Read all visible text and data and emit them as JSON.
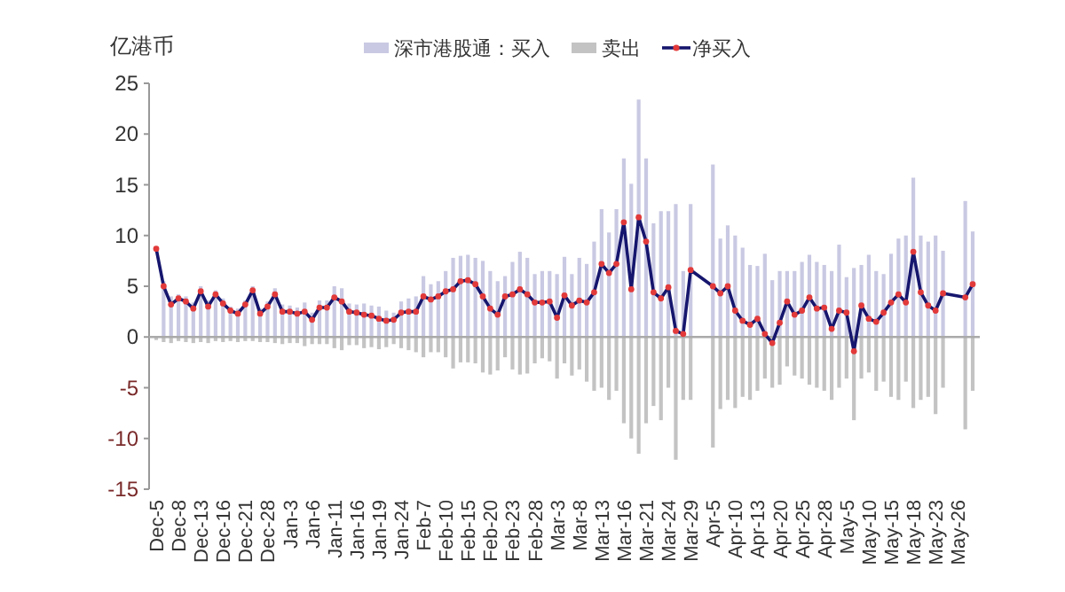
{
  "chart_data": {
    "type": "bar",
    "ylabel": "亿港币",
    "legend": "top",
    "stacked": true,
    "categories": [
      "Dec-5",
      null,
      null,
      "Dec-8",
      null,
      null,
      "Dec-13",
      null,
      null,
      "Dec-16",
      null,
      null,
      "Dec-21",
      null,
      null,
      "Dec-28",
      null,
      null,
      "Jan-3",
      null,
      null,
      "Jan-6",
      null,
      null,
      "Jan-11",
      null,
      null,
      "Jan-16",
      null,
      null,
      "Jan-19",
      null,
      null,
      "Jan-24",
      null,
      null,
      "Feb-7",
      null,
      null,
      "Feb-10",
      null,
      null,
      "Feb-15",
      null,
      null,
      "Feb-20",
      null,
      null,
      "Feb-23",
      null,
      null,
      "Feb-28",
      null,
      null,
      "Mar-3",
      null,
      null,
      "Mar-8",
      null,
      null,
      "Mar-13",
      null,
      null,
      "Mar-16",
      null,
      null,
      "Mar-21",
      null,
      null,
      "Mar-24",
      null,
      null,
      "Mar-29",
      null,
      null,
      "Apr-5",
      null,
      null,
      "Apr-10",
      null,
      null,
      "Apr-13",
      null,
      null,
      "Apr-20",
      null,
      null,
      "Apr-25",
      null,
      null,
      "Apr-28",
      null,
      null,
      "May-5",
      null,
      null,
      "May-10",
      null,
      null,
      "May-15",
      null,
      null,
      "May-18",
      null,
      null,
      "May-23",
      null,
      null,
      "May-26",
      null,
      null
    ],
    "ylim": [
      -15,
      25
    ],
    "yticks": [
      -15,
      -10,
      -5,
      0,
      5,
      10,
      15,
      20,
      25
    ],
    "series": [
      {
        "name": "深市港股通：买入",
        "color": "#c9c9e3",
        "values": [
          null,
          5.5,
          4.0,
          4.2,
          4.0,
          3.4,
          5.0,
          3.6,
          4.6,
          3.8,
          3.0,
          2.8,
          3.6,
          5.0,
          2.8,
          3.5,
          4.8,
          3.2,
          3.1,
          2.9,
          3.4,
          2.4,
          3.6,
          3.6,
          5.0,
          4.8,
          3.3,
          3.2,
          3.3,
          3.1,
          3.0,
          2.6,
          2.4,
          3.5,
          3.8,
          4.0,
          6.0,
          5.2,
          5.5,
          6.5,
          7.8,
          8.0,
          8.1,
          7.8,
          7.5,
          6.5,
          5.5,
          6.0,
          7.4,
          8.4,
          7.8,
          6.2,
          6.5,
          6.5,
          6.2,
          7.9,
          6.2,
          7.8,
          7.2,
          9.4,
          12.6,
          10.3,
          12.6,
          17.6,
          15.1,
          23.4,
          17.6,
          11.2,
          12.4,
          12.4,
          13.1,
          6.5,
          13.1,
          null,
          null,
          17,
          9.7,
          11,
          10,
          8.8,
          7.1,
          7.0,
          8.2,
          5.6,
          6.5,
          6.5,
          6.5,
          7.4,
          8.1,
          7.4,
          7.1,
          6.5,
          9.1,
          5.9,
          6.8,
          7.1,
          8.1,
          6.5,
          6.2,
          8.2,
          9.7,
          10,
          15.7,
          10,
          9.4,
          10,
          8.5,
          null,
          null,
          13.4,
          10.4
        ]
      },
      {
        "name": "卖出",
        "color": "#c3c3c3",
        "values": [
          -0.3,
          -0.5,
          -0.6,
          -0.4,
          -0.5,
          -0.6,
          -0.5,
          -0.6,
          -0.4,
          -0.5,
          -0.4,
          -0.5,
          -0.4,
          -0.4,
          -0.5,
          -0.5,
          -0.6,
          -0.7,
          -0.6,
          -0.6,
          -0.9,
          -0.7,
          -0.7,
          -0.7,
          -1.1,
          -1.3,
          -0.8,
          -0.8,
          -1.1,
          -1.0,
          -1.2,
          -1.0,
          -0.7,
          -1.1,
          -1.3,
          -1.5,
          -2.0,
          -1.5,
          -1.5,
          -2.0,
          -3.1,
          -2.5,
          -2.5,
          -2.6,
          -3.5,
          -3.7,
          -3.3,
          -2.0,
          -3.2,
          -3.7,
          -3.6,
          -2.6,
          -2.1,
          -2.4,
          -4.1,
          -2.6,
          -3.8,
          -3.2,
          -4.4,
          -5.3,
          -5.0,
          -6.2,
          -5.3,
          -8.5,
          -10,
          -11.5,
          -8.5,
          -6.8,
          -8.2,
          -5.0,
          -12.1,
          -6.2,
          -6.2,
          null,
          null,
          -10.9,
          -7.1,
          -6.2,
          -7,
          -5.9,
          -6.2,
          -5.3,
          -4.1,
          -5.0,
          -4.7,
          -2.9,
          -3.8,
          -4.1,
          -4.7,
          -5.0,
          -5.3,
          -6.2,
          -5.0,
          -4.1,
          -8.2,
          -4.1,
          -3.5,
          -5.3,
          -4.4,
          -5.9,
          -6.2,
          -4.4,
          -7,
          -6.2,
          -5.9,
          -7.6,
          -5.0,
          null,
          null,
          -9.1,
          -5.3
        ]
      },
      {
        "name": "净买入",
        "type": "line",
        "color": "#16166e",
        "marker": "circle",
        "line_style": "solid",
        "colors": [
          "#e23a3a",
          "#e23a3a",
          "#e23a3a",
          "#e23a3a",
          "#e23a3a",
          "#e23a3a",
          "#e23a3a",
          "#e23a3a",
          "#e23a3a",
          "#e23a3a",
          "#e23a3a",
          "#e23a3a",
          "#e23a3a",
          "#e23a3a",
          "#e23a3a",
          "#e23a3a",
          "#e23a3a",
          "#e23a3a",
          "#e23a3a",
          "#e23a3a",
          "#e23a3a",
          "#e23a3a",
          "#e23a3a",
          "#e23a3a",
          "#e23a3a",
          "#e23a3a",
          "#e23a3a",
          "#e23a3a",
          "#e23a3a",
          "#e23a3a",
          "#e23a3a",
          "#e23a3a",
          "#e23a3a",
          "#e23a3a",
          "#e23a3a",
          "#e23a3a",
          "#e23a3a",
          "#e23a3a",
          "#e23a3a",
          "#e23a3a",
          "#e23a3a",
          "#e23a3a",
          "#e23a3a",
          "#e23a3a",
          "#e23a3a",
          "#e23a3a",
          "#e23a3a",
          "#e23a3a",
          "#e23a3a",
          "#e23a3a",
          "#e23a3a",
          "#e23a3a",
          "#e23a3a",
          "#e23a3a",
          "#e23a3a",
          "#e23a3a",
          "#e23a3a",
          "#e23a3a",
          "#e23a3a",
          "#e23a3a",
          "#e23a3a",
          "#e23a3a",
          "#e23a3a",
          "#e23a3a",
          "#e23a3a",
          "#e23a3a",
          "#e23a3a",
          "#e23a3a",
          "#e23a3a",
          "#e23a3a",
          "#e23a3a",
          "#e23a3a",
          "#e23a3a",
          "#e23a3a",
          "#e23a3a",
          "#e23a3a",
          "#e23a3a",
          "#e23a3a",
          "#e23a3a",
          "#e23a3a",
          "#e23a3a",
          "#e23a3a",
          "#e23a3a",
          "#e23a3a",
          "#e23a3a",
          "#e23a3a",
          "#e23a3a",
          "#e23a3a",
          "#e23a3a",
          "#e23a3a",
          "#e23a3a",
          "#e23a3a",
          "#e23a3a",
          "#e23a3a",
          "#e23a3a",
          "#e23a3a",
          "#e23a3a",
          "#e23a3a",
          "#e23a3a",
          "#e23a3a",
          "#e23a3a",
          "#e23a3a",
          "#e23a3a",
          "#e23a3a",
          "#e23a3a",
          "#e23a3a",
          "#e23a3a",
          "#e23a3a",
          "#e23a3a",
          "#e23a3a",
          "#e23a3a"
        ],
        "values": [
          8.7,
          5,
          3.2,
          3.8,
          3.5,
          2.8,
          4.5,
          3,
          4.2,
          3.3,
          2.6,
          2.3,
          3.2,
          4.6,
          2.3,
          3,
          4.2,
          2.5,
          2.5,
          2.3,
          2.5,
          1.7,
          2.9,
          2.9,
          3.9,
          3.5,
          2.5,
          2.4,
          2.2,
          2.1,
          1.8,
          1.6,
          1.7,
          2.4,
          2.5,
          2.5,
          4,
          3.7,
          4,
          4.5,
          4.7,
          5.5,
          5.6,
          5.2,
          4,
          2.8,
          2.2,
          4,
          4.2,
          4.7,
          4.2,
          3.4,
          3.4,
          3.5,
          1.9,
          4.1,
          3.1,
          3.6,
          3.4,
          4.4,
          7.2,
          6.3,
          7.2,
          11.3,
          4.7,
          11.8,
          9.4,
          4.4,
          3.8,
          4.9,
          0.6,
          0.3,
          6.6,
          null,
          null,
          5,
          4.3,
          5,
          2.6,
          1.6,
          1.2,
          1.8,
          0.3,
          -0.6,
          1.4,
          3.5,
          2.2,
          2.6,
          3.9,
          2.8,
          2.9,
          0.8,
          2.6,
          2.4,
          -1.4,
          3.1,
          1.8,
          1.5,
          2.4,
          3.4,
          4.2,
          3.4,
          8.4,
          4.4,
          3.1,
          2.6,
          4.3,
          null,
          null,
          3.9,
          5.2
        ]
      }
    ]
  }
}
